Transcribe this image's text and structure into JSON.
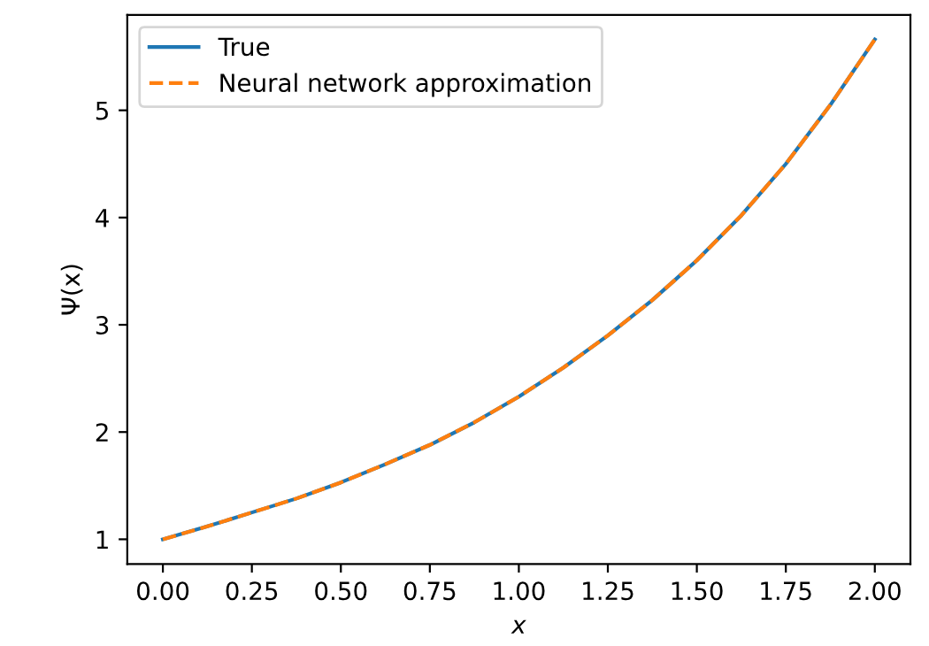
{
  "chart_data": {
    "type": "line",
    "xlabel": "x",
    "ylabel": "Ψ(x)",
    "x": [
      0,
      0.125,
      0.25,
      0.375,
      0.5,
      0.625,
      0.75,
      0.875,
      1.0,
      1.125,
      1.25,
      1.375,
      1.5,
      1.625,
      1.75,
      1.875,
      2.0
    ],
    "series": [
      {
        "name": "True",
        "color": "#1f77b4",
        "line_style": "solid",
        "values": [
          1.0,
          1.12,
          1.25,
          1.38,
          1.53,
          1.7,
          1.88,
          2.09,
          2.33,
          2.6,
          2.9,
          3.23,
          3.6,
          4.02,
          4.5,
          5.05,
          5.66
        ]
      },
      {
        "name": "Neural network approximation",
        "color": "#ff7f0e",
        "line_style": "dashed",
        "values": [
          1.0,
          1.12,
          1.25,
          1.38,
          1.53,
          1.7,
          1.88,
          2.09,
          2.33,
          2.6,
          2.9,
          3.23,
          3.6,
          4.02,
          4.5,
          5.05,
          5.66
        ]
      }
    ],
    "xlim": [
      -0.1,
      2.1
    ],
    "xticks": [
      {
        "value": 0,
        "label": "0.00"
      },
      0.25,
      {
        "value": 0.5,
        "label": "0.50"
      },
      0.75,
      {
        "value": 1,
        "label": "1.00"
      },
      1.25,
      {
        "value": 1.5,
        "label": "1.50"
      },
      1.75,
      {
        "value": 2,
        "label": "2.00"
      }
    ],
    "ylim": [
      0.77,
      5.89
    ],
    "yticks": [
      1,
      2,
      3,
      4,
      5
    ],
    "legend": "top left"
  }
}
